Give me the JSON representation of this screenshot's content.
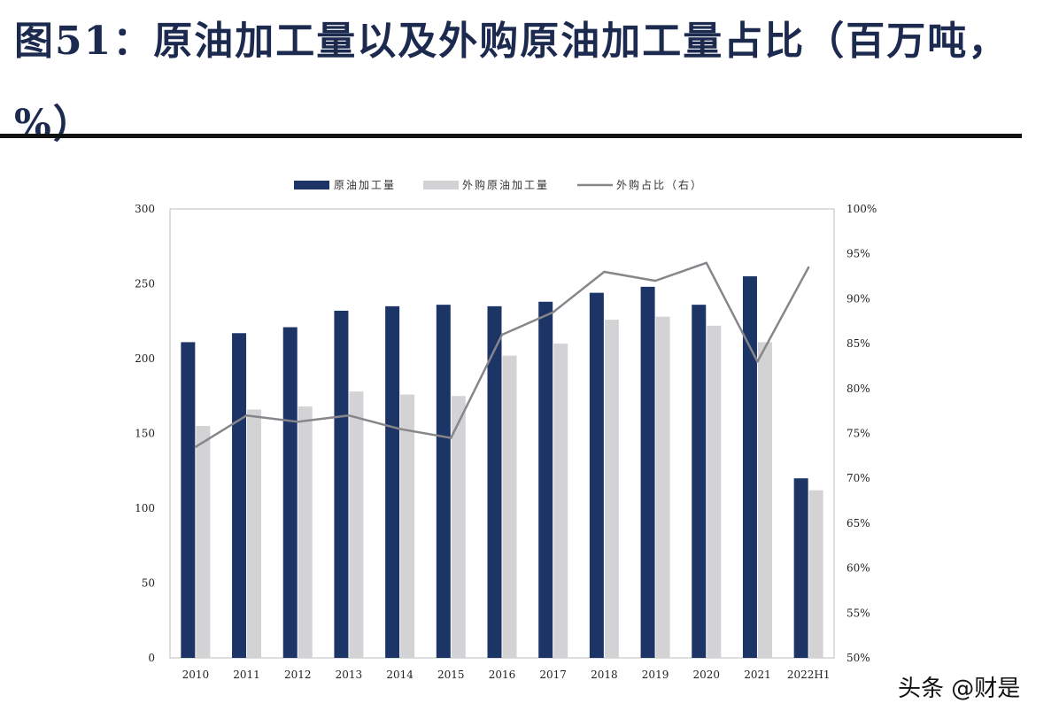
{
  "header": {
    "title": "图51：原油加工量以及外购原油加工量占比（百万吨，%）"
  },
  "watermark": "头条 @财是",
  "colors": {
    "primary_bar": "#1d3566",
    "secondary_bar": "#d3d3d6",
    "line": "#86868b"
  },
  "chart_data": {
    "type": "bar",
    "categories": [
      "2010",
      "2011",
      "2012",
      "2013",
      "2014",
      "2015",
      "2016",
      "2017",
      "2018",
      "2019",
      "2020",
      "2021",
      "2022H1"
    ],
    "series": [
      {
        "name": "原油加工量",
        "type": "bar",
        "axis": "left",
        "values": [
          211,
          217,
          221,
          232,
          235,
          236,
          235,
          238,
          244,
          248,
          236,
          255,
          120
        ]
      },
      {
        "name": "外购原油加工量",
        "type": "bar",
        "axis": "left",
        "values": [
          155,
          166,
          168,
          178,
          176,
          175,
          202,
          210,
          226,
          228,
          222,
          211,
          112
        ]
      },
      {
        "name": "外购占比（右）",
        "type": "line",
        "axis": "right",
        "values": [
          73.5,
          77.0,
          76.3,
          77.0,
          75.5,
          74.5,
          86.0,
          88.5,
          93.0,
          92.0,
          94.0,
          83.0,
          93.5
        ]
      }
    ],
    "y_left": {
      "ylim": [
        0,
        300
      ],
      "ticks": [
        "0",
        "50",
        "100",
        "150",
        "200",
        "250",
        "300"
      ]
    },
    "y_right": {
      "ylim": [
        50,
        100
      ],
      "ticks": [
        "50%",
        "55%",
        "60%",
        "65%",
        "70%",
        "75%",
        "80%",
        "85%",
        "90%",
        "95%",
        "100%"
      ]
    },
    "legend": "top-center",
    "grid": false
  }
}
